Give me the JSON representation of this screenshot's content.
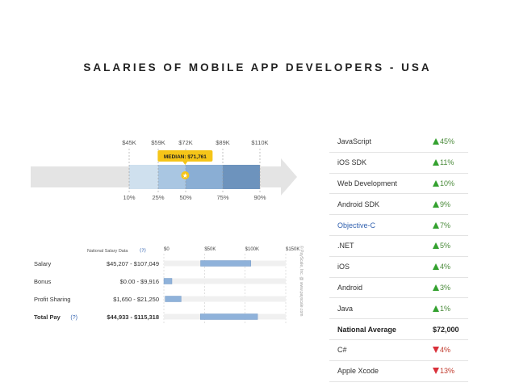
{
  "title": "SALARIES OF MOBILE APP DEVELOPERS - USA",
  "colors": {
    "up": "#33a12f",
    "down": "#d9303a",
    "bar": "#8fb2da",
    "median": "#f5c518",
    "link": "#2f5fae"
  },
  "chart_data": [
    {
      "type": "range",
      "tick_values": [
        45,
        59,
        72,
        89,
        110
      ],
      "top_labels": [
        "$45K",
        "$59K",
        "$72K",
        "$89K",
        "$110K"
      ],
      "bottom_labels": [
        "10%",
        "25%",
        "50%",
        "75%",
        "90%"
      ],
      "median": {
        "value": 71.761,
        "label": "MEDIAN: $71,761"
      },
      "star_icon": "star-icon",
      "arrow_icon": "arrow-right-icon"
    },
    {
      "type": "bar",
      "header": "National Salary Data",
      "info_icon": "question-circle-icon",
      "axis_ticks": [
        0,
        50000,
        100000,
        150000
      ],
      "axis_labels": [
        "$0",
        "$50K",
        "$100K",
        "$150K"
      ],
      "rows": [
        {
          "label": "Salary",
          "range": "$45,207 - $107,049",
          "low": 45207,
          "high": 107049,
          "bold": false,
          "question": ""
        },
        {
          "label": "Bonus",
          "range": "$0.00 - $9,916",
          "low": 0,
          "high": 9916,
          "bold": false,
          "question": ""
        },
        {
          "label": "Profit Sharing",
          "range": "$1,650 - $21,250",
          "low": 1650,
          "high": 21250,
          "bold": false,
          "question": ""
        },
        {
          "label": "Total Pay",
          "range": "$44,933 - $115,318",
          "low": 44933,
          "high": 115318,
          "bold": true,
          "question": "(?)"
        }
      ],
      "watermark": "© PayScale, Inc. @ www.payscale.com"
    },
    {
      "type": "table",
      "rows": [
        {
          "name": "JavaScript",
          "change": "45%",
          "direction": "up"
        },
        {
          "name": "iOS SDK",
          "change": "11%",
          "direction": "up"
        },
        {
          "name": "Web Development",
          "change": "10%",
          "direction": "up"
        },
        {
          "name": "Android SDK",
          "change": "9%",
          "direction": "up"
        },
        {
          "name": "Objective-C",
          "change": "7%",
          "direction": "up",
          "link": true
        },
        {
          "name": ".NET",
          "change": "5%",
          "direction": "up"
        },
        {
          "name": "iOS",
          "change": "4%",
          "direction": "up"
        },
        {
          "name": "Android",
          "change": "3%",
          "direction": "up"
        },
        {
          "name": "Java",
          "change": "1%",
          "direction": "up"
        },
        {
          "name": "National Average",
          "change": "$72,000",
          "direction": "none",
          "bold": true
        },
        {
          "name": "C#",
          "change": "4%",
          "direction": "down"
        },
        {
          "name": "Apple Xcode",
          "change": "13%",
          "direction": "down"
        }
      ]
    }
  ]
}
